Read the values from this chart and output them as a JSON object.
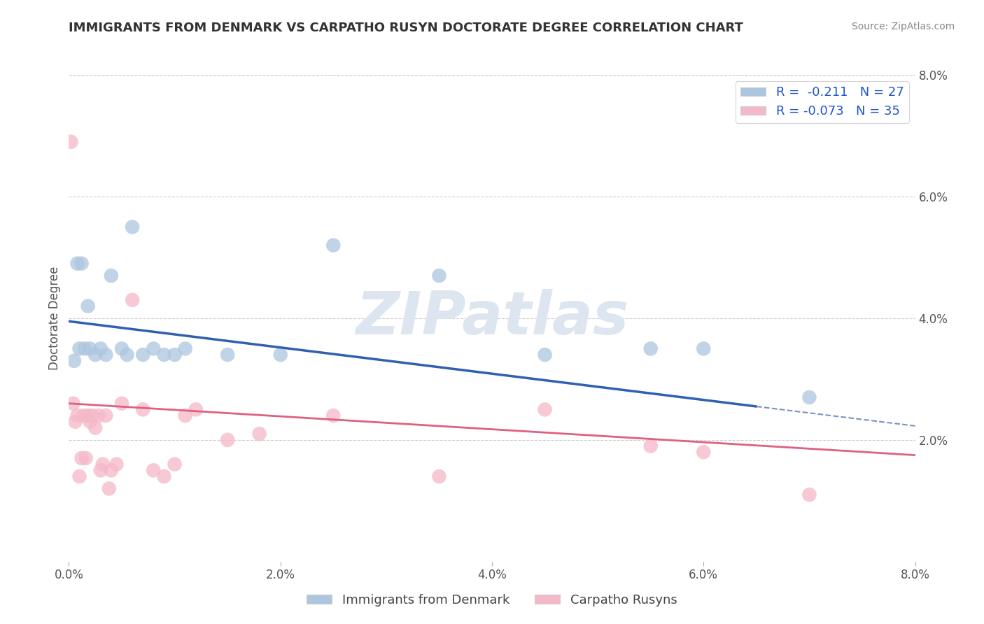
{
  "title": "IMMIGRANTS FROM DENMARK VS CARPATHO RUSYN DOCTORATE DEGREE CORRELATION CHART",
  "source_text": "Source: ZipAtlas.com",
  "ylabel": "Doctorate Degree",
  "blue_label": "Immigrants from Denmark",
  "pink_label": "Carpatho Rusyns",
  "blue_R": -0.211,
  "blue_N": 27,
  "pink_R": -0.073,
  "pink_N": 35,
  "blue_color": "#adc6e0",
  "pink_color": "#f5b8c8",
  "blue_line_color": "#3060b0",
  "pink_line_color": "#e06080",
  "blue_dash_color": "#8090c0",
  "watermark": "ZIPatlas",
  "watermark_color": "#dde5f0",
  "xmin": 0.0,
  "xmax": 8.0,
  "ymin": 0.0,
  "ymax": 8.0,
  "blue_line_x0": 0.0,
  "blue_line_y0": 3.95,
  "blue_line_x1": 6.5,
  "blue_line_y1": 2.55,
  "blue_dash_x0": 6.5,
  "blue_dash_y0": 2.55,
  "blue_dash_x1": 8.0,
  "blue_dash_y1": 2.23,
  "pink_line_x0": 0.0,
  "pink_line_y0": 2.6,
  "pink_line_x1": 8.0,
  "pink_line_y1": 1.75,
  "blue_dots_x": [
    0.05,
    0.08,
    0.1,
    0.12,
    0.15,
    0.18,
    0.2,
    0.25,
    0.3,
    0.35,
    0.4,
    0.5,
    0.55,
    0.6,
    0.7,
    0.8,
    0.9,
    1.0,
    1.1,
    1.5,
    2.0,
    2.5,
    3.5,
    4.5,
    5.5,
    6.0,
    7.0
  ],
  "blue_dots_y": [
    3.3,
    4.9,
    3.5,
    4.9,
    3.5,
    4.2,
    3.5,
    3.4,
    3.5,
    3.4,
    4.7,
    3.5,
    3.4,
    5.5,
    3.4,
    3.5,
    3.4,
    3.4,
    3.5,
    3.4,
    3.4,
    5.2,
    4.7,
    3.4,
    3.5,
    3.5,
    2.7
  ],
  "pink_dots_x": [
    0.02,
    0.04,
    0.06,
    0.08,
    0.1,
    0.12,
    0.14,
    0.16,
    0.18,
    0.2,
    0.22,
    0.25,
    0.28,
    0.3,
    0.32,
    0.35,
    0.38,
    0.4,
    0.45,
    0.5,
    0.6,
    0.7,
    0.8,
    0.9,
    1.0,
    1.1,
    1.2,
    1.5,
    1.8,
    2.5,
    3.5,
    4.5,
    5.5,
    6.0,
    7.0
  ],
  "pink_dots_y": [
    6.9,
    2.6,
    2.3,
    2.4,
    1.4,
    1.7,
    2.4,
    1.7,
    2.4,
    2.3,
    2.4,
    2.2,
    2.4,
    1.5,
    1.6,
    2.4,
    1.2,
    1.5,
    1.6,
    2.6,
    4.3,
    2.5,
    1.5,
    1.4,
    1.6,
    2.4,
    2.5,
    2.0,
    2.1,
    2.4,
    1.4,
    2.5,
    1.9,
    1.8,
    1.1
  ]
}
